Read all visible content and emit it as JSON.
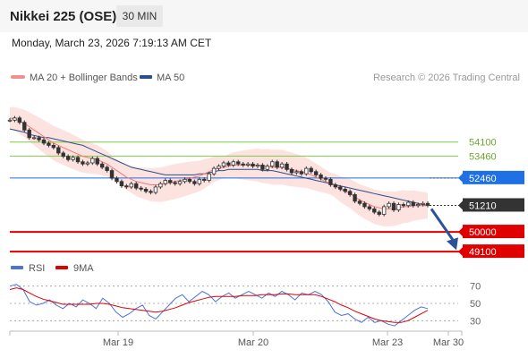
{
  "header": {
    "title": "Nikkei 225 (OSE)",
    "timeframe": "30 MIN"
  },
  "datetime": "Monday, March 23, 2026 7:19:13 AM CET",
  "legend": {
    "ma20": "MA 20 + Bollinger Bands",
    "ma50": "MA 50",
    "rsi": "RSI",
    "rsi_ma": "9MA"
  },
  "credit": "Research © 2026 Trading Central",
  "colors": {
    "ma20": "#f07a7a",
    "ma50": "#2a4f8a",
    "band": "#fcd9d6",
    "pivot": "#1f6fe5",
    "support": "#e00000",
    "resistance": "#7fc94a",
    "last": "#333333",
    "rsi": "#4a74d9",
    "rsi_ma": "#e00000",
    "arrow": "#2a5298",
    "candle": "#333333"
  },
  "chart_data": [
    {
      "type": "candlestick",
      "title": "Nikkei 225 (OSE)",
      "timeframe": "30 MIN",
      "ylim": [
        48900,
        56500
      ],
      "x_ticks": [
        "Mar 19",
        "Mar 20",
        "Mar 23",
        "Mar 30"
      ],
      "levels": [
        {
          "name": "resistance 2",
          "value": 54100,
          "color": "#7fc94a"
        },
        {
          "name": "resistance 1",
          "value": 53460,
          "color": "#7fc94a"
        },
        {
          "name": "pivot",
          "value": 52460,
          "color": "#1f6fe5"
        },
        {
          "name": "last",
          "value": 51210,
          "color": "#333333"
        },
        {
          "name": "support 1",
          "value": 50000,
          "color": "#e00000"
        },
        {
          "name": "support 2",
          "value": 49100,
          "color": "#e00000"
        }
      ],
      "series": [
        {
          "name": "Price",
          "values": [
            55100,
            55200,
            55000,
            54650,
            54300,
            54300,
            54200,
            54050,
            53950,
            53850,
            53600,
            53450,
            53300,
            53400,
            53200,
            53100,
            53150,
            53350,
            53100,
            52950,
            52800,
            52450,
            52300,
            52100,
            52050,
            52200,
            52000,
            51950,
            51850,
            51800,
            52050,
            52200,
            52350,
            52250,
            52200,
            52300,
            52400,
            52300,
            52200,
            52400,
            52350,
            52650,
            52900,
            53000,
            53150,
            53050,
            53200,
            53100,
            53050,
            53100,
            53000,
            53050,
            52850,
            53000,
            53200,
            52950,
            53100,
            52850,
            52700,
            52750,
            52650,
            52900,
            52750,
            52600,
            52450,
            52400,
            52150,
            52050,
            51950,
            51850,
            51700,
            51400,
            51300,
            51150,
            51050,
            50900,
            50800,
            51150,
            51300,
            51000,
            51250,
            51200,
            51350,
            51200,
            51250,
            51300,
            51210
          ]
        },
        {
          "name": "MA 20",
          "values": [
            55200,
            55150,
            55050,
            54950,
            54800,
            54650,
            54500,
            54350,
            54200,
            54050,
            53950,
            53850,
            53750,
            53650,
            53550,
            53450,
            53400,
            53350,
            53300,
            53200,
            53100,
            52950,
            52800,
            52650,
            52500,
            52400,
            52300,
            52250,
            52200,
            52150,
            52150,
            52150,
            52200,
            52250,
            52300,
            52350,
            52400,
            52450,
            52500,
            52550,
            52650,
            52750,
            52850,
            52900,
            52950,
            53000,
            53050,
            53050,
            53050,
            53050,
            53050,
            53050,
            53000,
            53000,
            52950,
            52950,
            52950,
            52900,
            52850,
            52800,
            52750,
            52700,
            52600,
            52500,
            52400,
            52300,
            52200,
            52100,
            51950,
            51850,
            51750,
            51600,
            51450,
            51350,
            51250,
            51150,
            51100,
            51050,
            51050,
            51050,
            51100,
            51150,
            51150,
            51200,
            51200,
            51200,
            51200
          ]
        },
        {
          "name": "MA 50",
          "values": [
            54700,
            54650,
            54600,
            54550,
            54450,
            54400,
            54350,
            54300,
            54300,
            54250,
            54200,
            54150,
            54100,
            54050,
            54000,
            53950,
            53850,
            53750,
            53650,
            53550,
            53450,
            53350,
            53250,
            53150,
            53050,
            52950,
            52900,
            52850,
            52800,
            52750,
            52700,
            52650,
            52600,
            52600,
            52600,
            52600,
            52600,
            52600,
            52600,
            52650,
            52650,
            52700,
            52750,
            52800,
            52800,
            52850,
            52850,
            52850,
            52850,
            52850,
            52850,
            52850,
            52800,
            52800,
            52800,
            52750,
            52700,
            52650,
            52600,
            52550,
            52500,
            52450,
            52400,
            52350,
            52300,
            52250,
            52200,
            52150,
            52100,
            52050,
            52000,
            51950,
            51900,
            51850,
            51800,
            51750,
            51700,
            51650,
            51600,
            51550,
            51500,
            51450,
            51400,
            51350,
            51300,
            51250,
            51200
          ]
        }
      ]
    },
    {
      "type": "line",
      "title": "RSI",
      "ylim": [
        20,
        80
      ],
      "y_ticks": [
        70,
        50,
        30
      ],
      "series": [
        {
          "name": "RSI",
          "values": [
            70,
            72,
            66,
            52,
            48,
            50,
            54,
            48,
            44,
            50,
            46,
            54,
            50,
            44,
            56,
            50,
            40,
            34,
            38,
            44,
            48,
            36,
            32,
            40,
            48,
            56,
            60,
            52,
            58,
            64,
            60,
            52,
            58,
            62,
            56,
            60,
            64,
            60,
            56,
            62,
            58,
            64,
            60,
            54,
            62,
            60,
            64,
            60,
            52,
            40,
            36,
            38,
            32,
            28,
            34,
            28,
            30,
            26,
            24,
            30,
            36,
            42,
            46,
            44
          ]
        },
        {
          "name": "9MA",
          "values": [
            66,
            68,
            66,
            62,
            58,
            55,
            53,
            51,
            49,
            49,
            49,
            49,
            49,
            50,
            50,
            49,
            47,
            45,
            44,
            43,
            42,
            41,
            40,
            41,
            43,
            45,
            48,
            51,
            53,
            55,
            57,
            58,
            58,
            58,
            58,
            59,
            59,
            59,
            60,
            60,
            60,
            61,
            61,
            60,
            60,
            60,
            60,
            58,
            55,
            52,
            48,
            45,
            41,
            38,
            35,
            32,
            30,
            29,
            28,
            28,
            30,
            34,
            38,
            42
          ]
        }
      ]
    }
  ]
}
